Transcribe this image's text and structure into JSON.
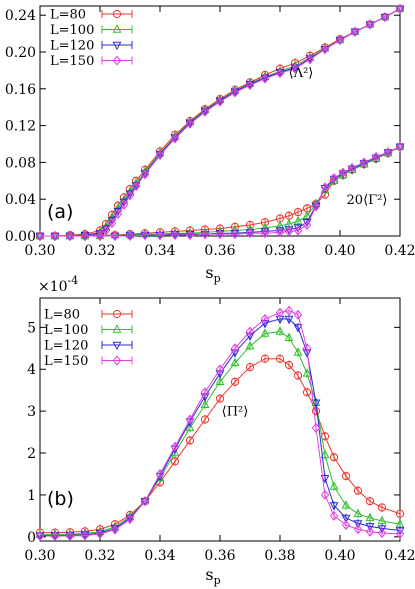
{
  "chart_data": [
    {
      "type": "line",
      "panel_label": "(a)",
      "xlabel": "s",
      "xlabel_sub": "p",
      "xlim": [
        0.3,
        0.42
      ],
      "ylim": [
        0.0,
        0.25
      ],
      "xticks": [
        "0.30",
        "0.32",
        "0.34",
        "0.36",
        "0.38",
        "0.40",
        "0.42"
      ],
      "yticks": [
        "0.00",
        "0.04",
        "0.08",
        "0.12",
        "0.16",
        "0.20",
        "0.24"
      ],
      "legend_position": "top-left",
      "annotations": [
        {
          "text": "⟨Λ²⟩",
          "x": 0.387,
          "y": 0.173
        },
        {
          "text": "20⟨Γ²⟩",
          "x": 0.409,
          "y": 0.035
        }
      ],
      "series": [
        {
          "name": "L=80",
          "group": "Lambda",
          "color": "#e8382f",
          "marker": "circle",
          "x": [
            0.3,
            0.305,
            0.31,
            0.315,
            0.32,
            0.322,
            0.324,
            0.326,
            0.328,
            0.33,
            0.332,
            0.335,
            0.34,
            0.345,
            0.35,
            0.355,
            0.36,
            0.365,
            0.37,
            0.375,
            0.38,
            0.385,
            0.39,
            0.395,
            0.4,
            0.405,
            0.41,
            0.415,
            0.42
          ],
          "y": [
            0.0,
            0.0,
            0.001,
            0.002,
            0.006,
            0.013,
            0.023,
            0.033,
            0.042,
            0.051,
            0.06,
            0.072,
            0.092,
            0.11,
            0.125,
            0.138,
            0.149,
            0.159,
            0.167,
            0.175,
            0.182,
            0.188,
            0.196,
            0.205,
            0.214,
            0.222,
            0.23,
            0.238,
            0.247
          ]
        },
        {
          "name": "L=100",
          "group": "Lambda",
          "color": "#2fbf2f",
          "marker": "triangle-up",
          "x": [
            0.3,
            0.305,
            0.31,
            0.315,
            0.32,
            0.322,
            0.324,
            0.326,
            0.328,
            0.33,
            0.332,
            0.335,
            0.34,
            0.345,
            0.35,
            0.355,
            0.36,
            0.365,
            0.37,
            0.375,
            0.38,
            0.385,
            0.39,
            0.395,
            0.4,
            0.405,
            0.41,
            0.415,
            0.42
          ],
          "y": [
            0.0,
            0.0,
            0.0,
            0.001,
            0.004,
            0.01,
            0.02,
            0.03,
            0.039,
            0.048,
            0.057,
            0.07,
            0.09,
            0.108,
            0.124,
            0.137,
            0.148,
            0.158,
            0.166,
            0.173,
            0.179,
            0.185,
            0.194,
            0.204,
            0.213,
            0.222,
            0.23,
            0.238,
            0.247
          ]
        },
        {
          "name": "L=120",
          "group": "Lambda",
          "color": "#2b2bd6",
          "marker": "triangle-down",
          "x": [
            0.3,
            0.305,
            0.31,
            0.315,
            0.32,
            0.322,
            0.324,
            0.326,
            0.328,
            0.33,
            0.332,
            0.335,
            0.34,
            0.345,
            0.35,
            0.355,
            0.36,
            0.365,
            0.37,
            0.375,
            0.38,
            0.385,
            0.39,
            0.395,
            0.4,
            0.405,
            0.41,
            0.415,
            0.42
          ],
          "y": [
            0.0,
            0.0,
            0.0,
            0.001,
            0.003,
            0.008,
            0.017,
            0.027,
            0.037,
            0.046,
            0.055,
            0.068,
            0.089,
            0.107,
            0.123,
            0.136,
            0.147,
            0.157,
            0.165,
            0.172,
            0.178,
            0.183,
            0.193,
            0.203,
            0.213,
            0.222,
            0.23,
            0.238,
            0.247
          ]
        },
        {
          "name": "L=150",
          "group": "Lambda",
          "color": "#e040e0",
          "marker": "diamond",
          "x": [
            0.3,
            0.305,
            0.31,
            0.315,
            0.32,
            0.322,
            0.324,
            0.326,
            0.328,
            0.33,
            0.332,
            0.335,
            0.34,
            0.345,
            0.35,
            0.355,
            0.36,
            0.365,
            0.37,
            0.375,
            0.38,
            0.385,
            0.39,
            0.395,
            0.4,
            0.405,
            0.41,
            0.415,
            0.42
          ],
          "y": [
            0.0,
            0.0,
            0.0,
            0.0,
            0.002,
            0.006,
            0.014,
            0.024,
            0.034,
            0.044,
            0.054,
            0.067,
            0.088,
            0.106,
            0.122,
            0.135,
            0.146,
            0.156,
            0.164,
            0.171,
            0.177,
            0.182,
            0.192,
            0.203,
            0.213,
            0.222,
            0.23,
            0.238,
            0.247
          ]
        },
        {
          "group": "Gamma",
          "color": "#e8382f",
          "marker": "circle",
          "x": [
            0.3,
            0.305,
            0.31,
            0.315,
            0.32,
            0.325,
            0.33,
            0.335,
            0.34,
            0.345,
            0.35,
            0.355,
            0.36,
            0.365,
            0.37,
            0.375,
            0.38,
            0.383,
            0.386,
            0.389,
            0.392,
            0.395,
            0.398,
            0.401,
            0.404,
            0.408,
            0.412,
            0.416,
            0.42
          ],
          "y": [
            0.0,
            0.0,
            0.0,
            0.0,
            0.001,
            0.001,
            0.002,
            0.003,
            0.004,
            0.005,
            0.006,
            0.007,
            0.008,
            0.01,
            0.012,
            0.015,
            0.019,
            0.022,
            0.026,
            0.03,
            0.035,
            0.045,
            0.06,
            0.066,
            0.072,
            0.078,
            0.084,
            0.09,
            0.097
          ]
        },
        {
          "group": "Gamma",
          "color": "#2fbf2f",
          "marker": "triangle-up",
          "x": [
            0.3,
            0.305,
            0.31,
            0.315,
            0.32,
            0.325,
            0.33,
            0.335,
            0.34,
            0.345,
            0.35,
            0.355,
            0.36,
            0.365,
            0.37,
            0.375,
            0.38,
            0.383,
            0.386,
            0.389,
            0.392,
            0.395,
            0.398,
            0.401,
            0.404,
            0.408,
            0.412,
            0.416,
            0.42
          ],
          "y": [
            0.0,
            0.0,
            0.0,
            0.0,
            0.0,
            0.001,
            0.001,
            0.002,
            0.002,
            0.003,
            0.003,
            0.004,
            0.005,
            0.006,
            0.007,
            0.009,
            0.011,
            0.013,
            0.016,
            0.022,
            0.035,
            0.05,
            0.06,
            0.066,
            0.072,
            0.078,
            0.084,
            0.09,
            0.097
          ]
        },
        {
          "group": "Gamma",
          "color": "#2b2bd6",
          "marker": "triangle-down",
          "x": [
            0.3,
            0.305,
            0.31,
            0.315,
            0.32,
            0.325,
            0.33,
            0.335,
            0.34,
            0.345,
            0.35,
            0.355,
            0.36,
            0.365,
            0.37,
            0.375,
            0.38,
            0.383,
            0.386,
            0.389,
            0.392,
            0.395,
            0.398,
            0.401,
            0.404,
            0.408,
            0.412,
            0.416,
            0.42
          ],
          "y": [
            0.0,
            0.0,
            0.0,
            0.0,
            0.0,
            0.0,
            0.001,
            0.001,
            0.001,
            0.002,
            0.002,
            0.002,
            0.003,
            0.003,
            0.004,
            0.005,
            0.006,
            0.007,
            0.009,
            0.015,
            0.033,
            0.052,
            0.062,
            0.068,
            0.073,
            0.079,
            0.085,
            0.091,
            0.097
          ]
        },
        {
          "group": "Gamma",
          "color": "#e040e0",
          "marker": "diamond",
          "x": [
            0.3,
            0.305,
            0.31,
            0.315,
            0.32,
            0.325,
            0.33,
            0.335,
            0.34,
            0.345,
            0.35,
            0.355,
            0.36,
            0.365,
            0.37,
            0.375,
            0.38,
            0.383,
            0.386,
            0.389,
            0.392,
            0.395,
            0.398,
            0.401,
            0.404,
            0.408,
            0.412,
            0.416,
            0.42
          ],
          "y": [
            0.0,
            0.0,
            0.0,
            0.0,
            0.0,
            0.0,
            0.0,
            0.001,
            0.001,
            0.001,
            0.001,
            0.002,
            0.002,
            0.002,
            0.003,
            0.003,
            0.004,
            0.005,
            0.006,
            0.012,
            0.032,
            0.053,
            0.063,
            0.069,
            0.074,
            0.08,
            0.086,
            0.091,
            0.097
          ]
        }
      ]
    },
    {
      "type": "line",
      "panel_label": "(b)",
      "xlabel": "s",
      "xlabel_sub": "p",
      "scale_label": "×10",
      "scale_exp": "-4",
      "xlim": [
        0.3,
        0.42
      ],
      "ylim": [
        -0.1,
        5.7
      ],
      "xticks": [
        "0.30",
        "0.32",
        "0.34",
        "0.36",
        "0.38",
        "0.40",
        "0.42"
      ],
      "yticks": [
        "0",
        "1",
        "2",
        "3",
        "4",
        "5"
      ],
      "legend_position": "top-left",
      "annotations": [
        {
          "text": "⟨Π²⟩",
          "x": 0.365,
          "y": 2.9
        }
      ],
      "series": [
        {
          "name": "L=80",
          "color": "#e8382f",
          "marker": "circle",
          "x": [
            0.3,
            0.305,
            0.31,
            0.315,
            0.32,
            0.325,
            0.33,
            0.335,
            0.34,
            0.345,
            0.35,
            0.355,
            0.36,
            0.365,
            0.37,
            0.375,
            0.38,
            0.383,
            0.386,
            0.389,
            0.392,
            0.395,
            0.398,
            0.402,
            0.406,
            0.41,
            0.414,
            0.42
          ],
          "y": [
            0.1,
            0.1,
            0.11,
            0.13,
            0.18,
            0.3,
            0.52,
            0.85,
            1.3,
            1.8,
            2.3,
            2.8,
            3.3,
            3.7,
            4.05,
            4.25,
            4.25,
            4.1,
            3.85,
            3.45,
            3.0,
            2.4,
            1.9,
            1.45,
            1.1,
            0.85,
            0.7,
            0.55
          ]
        },
        {
          "name": "L=100",
          "color": "#2fbf2f",
          "marker": "triangle-up",
          "x": [
            0.3,
            0.305,
            0.31,
            0.315,
            0.32,
            0.325,
            0.33,
            0.335,
            0.34,
            0.345,
            0.35,
            0.355,
            0.36,
            0.365,
            0.37,
            0.375,
            0.38,
            0.383,
            0.386,
            0.389,
            0.392,
            0.395,
            0.398,
            0.402,
            0.406,
            0.41,
            0.414,
            0.42
          ],
          "y": [
            0.05,
            0.06,
            0.06,
            0.08,
            0.12,
            0.24,
            0.48,
            0.85,
            1.4,
            2.0,
            2.6,
            3.15,
            3.7,
            4.15,
            4.55,
            4.85,
            4.9,
            4.75,
            4.4,
            3.9,
            3.2,
            1.95,
            1.2,
            0.75,
            0.55,
            0.45,
            0.38,
            0.3
          ]
        },
        {
          "name": "L=120",
          "color": "#2b2bd6",
          "marker": "triangle-down",
          "x": [
            0.3,
            0.305,
            0.31,
            0.315,
            0.32,
            0.325,
            0.33,
            0.335,
            0.34,
            0.345,
            0.35,
            0.355,
            0.36,
            0.365,
            0.37,
            0.375,
            0.38,
            0.383,
            0.386,
            0.389,
            0.392,
            0.395,
            0.398,
            0.402,
            0.406,
            0.41,
            0.414,
            0.42
          ],
          "y": [
            0.03,
            0.03,
            0.04,
            0.05,
            0.09,
            0.2,
            0.45,
            0.85,
            1.45,
            2.1,
            2.75,
            3.35,
            3.9,
            4.4,
            4.8,
            5.1,
            5.2,
            5.2,
            5.0,
            4.4,
            3.2,
            1.4,
            0.75,
            0.45,
            0.32,
            0.25,
            0.2,
            0.15
          ]
        },
        {
          "name": "L=150",
          "color": "#e040e0",
          "marker": "diamond",
          "x": [
            0.3,
            0.305,
            0.31,
            0.315,
            0.32,
            0.325,
            0.33,
            0.335,
            0.34,
            0.345,
            0.35,
            0.355,
            0.36,
            0.365,
            0.37,
            0.375,
            0.38,
            0.383,
            0.386,
            0.389,
            0.392,
            0.395,
            0.398,
            0.402,
            0.406,
            0.41,
            0.414,
            0.42
          ],
          "y": [
            0.02,
            0.02,
            0.02,
            0.03,
            0.07,
            0.17,
            0.42,
            0.85,
            1.5,
            2.15,
            2.8,
            3.45,
            4.0,
            4.5,
            4.9,
            5.2,
            5.35,
            5.4,
            5.3,
            4.5,
            2.6,
            1.0,
            0.5,
            0.28,
            0.18,
            0.12,
            0.09,
            0.07
          ]
        }
      ]
    }
  ]
}
